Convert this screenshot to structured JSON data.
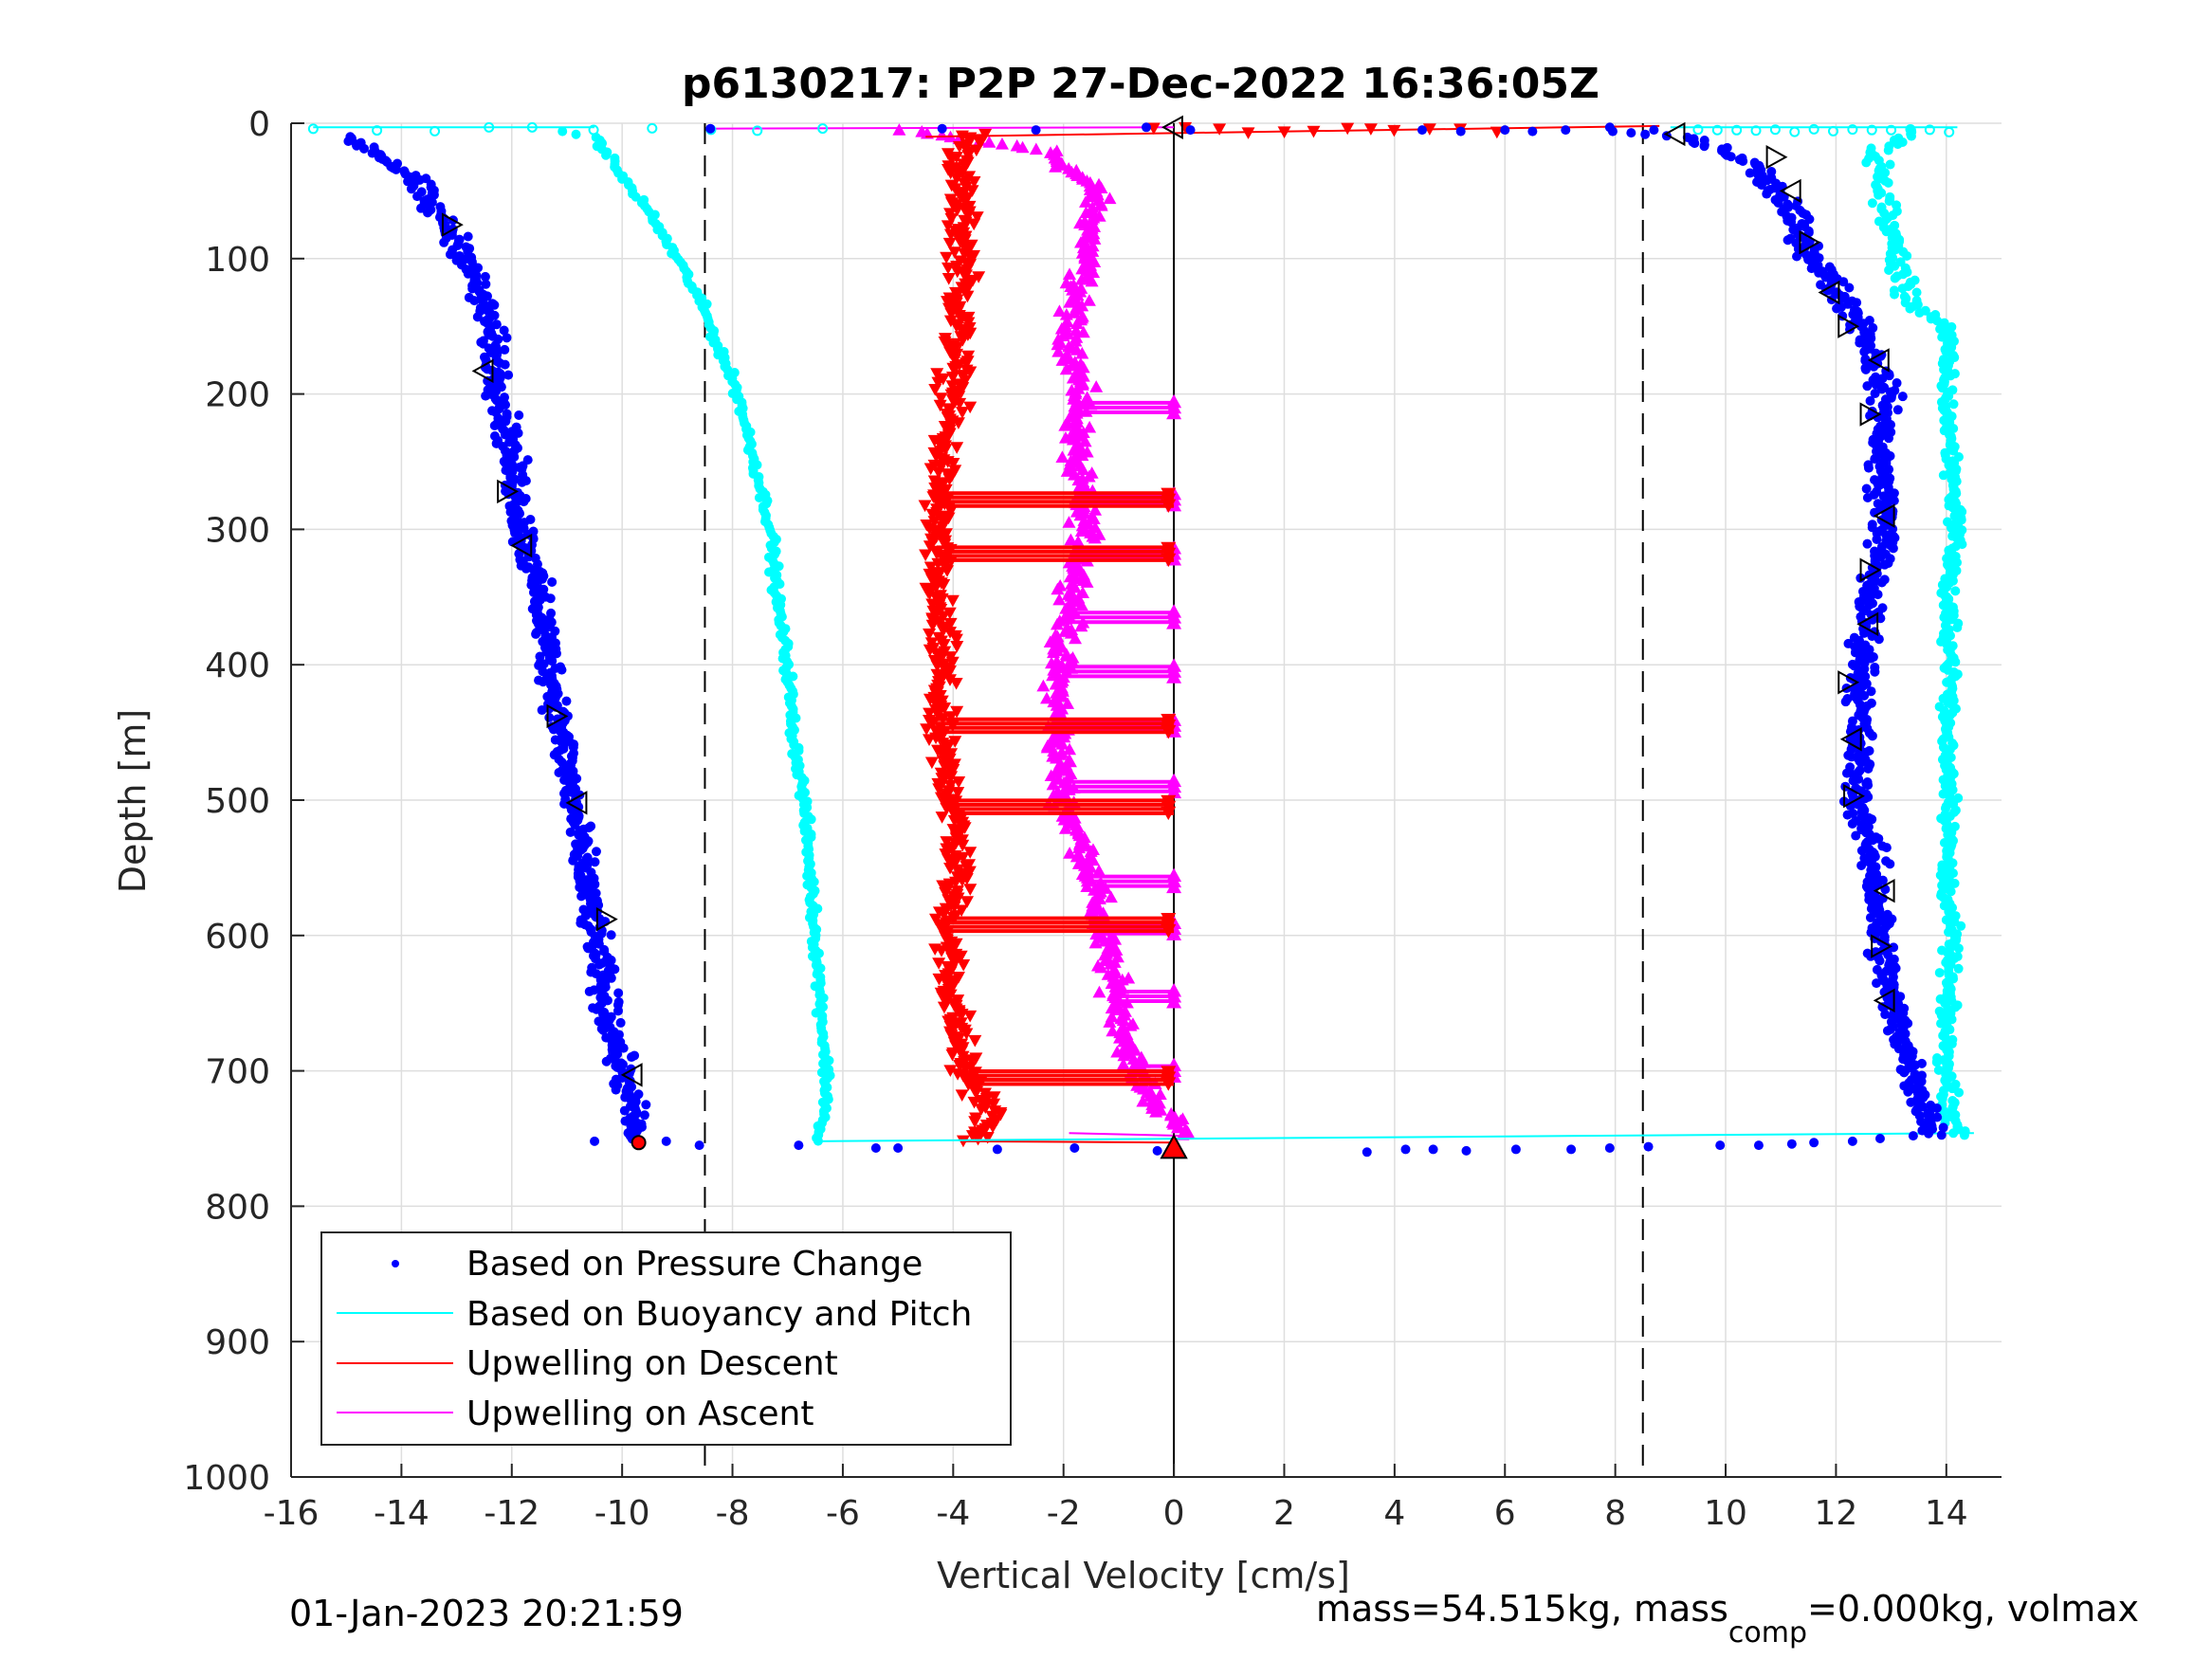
{
  "chart_data": {
    "type": "scatter",
    "title": "p6130217: P2P 27-Dec-2022 16:36:05Z",
    "xlabel": "Vertical Velocity [cm/s]",
    "ylabel": "Depth [m]",
    "xlim": [
      -16,
      15
    ],
    "ylim": [
      0,
      1000
    ],
    "y_reversed": true,
    "grid": true,
    "x_ticks": [
      "-16",
      "-14",
      "-12",
      "-10",
      "-8",
      "-6",
      "-4",
      "-2",
      "0",
      "2",
      "4",
      "6",
      "8",
      "10",
      "12",
      "14"
    ],
    "y_ticks": [
      "0",
      "100",
      "200",
      "300",
      "400",
      "500",
      "600",
      "700",
      "800",
      "900",
      "1000"
    ],
    "reference_lines": {
      "dashed_x": [
        -8.5,
        8.5
      ],
      "solid_x": [
        0
      ]
    },
    "legend_position": "bottom-left",
    "series": [
      {
        "name": "Based on Pressure Change",
        "color": "#0000ff",
        "marker": "dot",
        "descent": {
          "depth": [
            0,
            20,
            40,
            60,
            80,
            100,
            150,
            200,
            250,
            300,
            350,
            400,
            450,
            500,
            550,
            600,
            650,
            700,
            730,
            750
          ],
          "v": [
            -15.5,
            -14.5,
            -13.8,
            -13.5,
            -13.1,
            -12.8,
            -12.4,
            -12.2,
            -12.0,
            -11.8,
            -11.5,
            -11.3,
            -11.1,
            -10.9,
            -10.7,
            -10.5,
            -10.3,
            -10.0,
            -9.8,
            -9.8
          ]
        },
        "ascent": {
          "depth": [
            750,
            700,
            650,
            600,
            550,
            500,
            450,
            400,
            350,
            300,
            250,
            200,
            150,
            100,
            60,
            30,
            10,
            0
          ],
          "v": [
            13.8,
            13.4,
            13.0,
            12.8,
            12.7,
            12.4,
            12.4,
            12.5,
            12.6,
            12.9,
            12.8,
            12.9,
            12.5,
            11.6,
            11.1,
            10.5,
            9.3,
            5.5
          ]
        }
      },
      {
        "name": "Based on Buoyancy and Pitch",
        "color": "#00ffff",
        "marker": "circle",
        "descent": {
          "depth": [
            0,
            10,
            20,
            40,
            60,
            80,
            100,
            130,
            160,
            180,
            200,
            250,
            300,
            350,
            400,
            450,
            500,
            550,
            600,
            650,
            700,
            730,
            750
          ],
          "v": [
            -12.0,
            -10.5,
            -10.3,
            -10.0,
            -9.6,
            -9.3,
            -9.0,
            -8.6,
            -8.3,
            -8.1,
            -7.9,
            -7.6,
            -7.3,
            -7.2,
            -7.0,
            -6.9,
            -6.7,
            -6.6,
            -6.5,
            -6.4,
            -6.3,
            -6.3,
            -6.5
          ]
        },
        "ascent": {
          "depth": [
            750,
            730,
            700,
            650,
            600,
            550,
            500,
            450,
            400,
            350,
            300,
            250,
            200,
            150,
            130,
            100,
            60,
            20,
            5
          ],
          "v": [
            14.2,
            14.1,
            14.0,
            14.0,
            14.1,
            14.0,
            14.1,
            14.0,
            14.1,
            14.0,
            14.2,
            14.1,
            14.0,
            14.0,
            13.3,
            13.1,
            12.9,
            12.7,
            13.5
          ]
        }
      },
      {
        "name": "Upwelling on Descent",
        "color": "#ff0000",
        "marker": "triangle-down",
        "profile": {
          "depth": [
            5,
            20,
            50,
            100,
            150,
            200,
            250,
            300,
            350,
            400,
            450,
            500,
            550,
            600,
            650,
            700,
            730,
            750
          ],
          "v": [
            -3.5,
            -3.8,
            -3.9,
            -3.8,
            -3.9,
            -4.0,
            -4.2,
            -4.3,
            -4.3,
            -4.2,
            -4.3,
            -4.0,
            -3.9,
            -4.1,
            -4.0,
            -3.8,
            -3.3,
            -3.6
          ]
        },
        "horizontal_bands_depth": [
          278,
          318,
          445,
          505,
          592,
          705
        ]
      },
      {
        "name": "Upwelling on Ascent",
        "color": "#ff00ff",
        "marker": "triangle-up",
        "profile": {
          "depth": [
            745,
            730,
            700,
            650,
            600,
            550,
            500,
            450,
            400,
            350,
            300,
            250,
            200,
            150,
            100,
            50,
            20,
            5
          ],
          "v": [
            0.2,
            -0.2,
            -0.7,
            -1.0,
            -1.3,
            -1.5,
            -2.0,
            -2.1,
            -2.1,
            -1.8,
            -1.6,
            -1.8,
            -1.7,
            -1.9,
            -1.6,
            -1.4,
            -2.3,
            -5.0
          ]
        },
        "horizontal_bands_depth": [
          210,
          278,
          318,
          365,
          405,
          445,
          490,
          560,
          595,
          645,
          700
        ]
      }
    ],
    "markers": {
      "descent_triangles": [
        [
          -13.1,
          75
        ],
        [
          -12.5,
          183
        ],
        [
          -12.1,
          272
        ],
        [
          -11.8,
          312
        ],
        [
          -11.2,
          438
        ],
        [
          -10.8,
          502
        ],
        [
          -10.3,
          588
        ],
        [
          -9.8,
          703
        ]
      ],
      "ascent_triangles": [
        [
          9.1,
          8
        ],
        [
          10.9,
          25
        ],
        [
          11.2,
          50
        ],
        [
          11.5,
          88
        ],
        [
          11.9,
          125
        ],
        [
          12.2,
          150
        ],
        [
          12.8,
          175
        ],
        [
          12.6,
          215
        ],
        [
          12.9,
          290
        ],
        [
          12.6,
          330
        ],
        [
          12.6,
          370
        ],
        [
          12.2,
          413
        ],
        [
          12.3,
          455
        ],
        [
          12.3,
          497
        ],
        [
          12.9,
          567
        ],
        [
          12.8,
          608
        ],
        [
          12.9,
          648
        ]
      ],
      "zero_start_triangle": [
        0,
        3
      ],
      "red_up_triangle": [
        0,
        757
      ],
      "red_dot": [
        -9.7,
        753
      ]
    },
    "footer_left": "01-Jan-2023 20:21:59",
    "footer_right": {
      "prefix": "mass=54.515kg, mass",
      "subscript": "comp",
      "suffix": "=0.000kg, volmax"
    }
  }
}
